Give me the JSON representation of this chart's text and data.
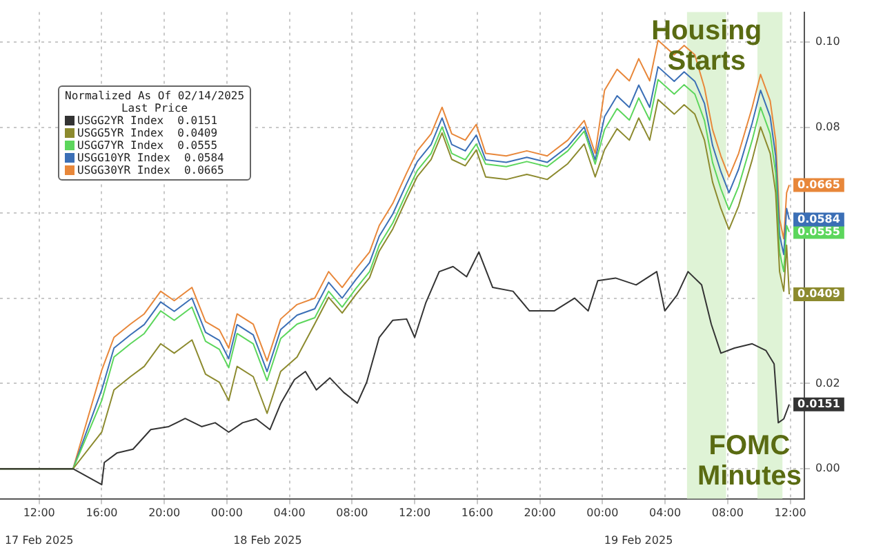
{
  "chart_data": {
    "type": "line",
    "legend_title": "Normalized As Of 02/14/2025",
    "annotations": [
      "Last Price"
    ],
    "x": [
      "2025-02-17T09:30",
      "2025-02-17T14:10",
      "2025-02-17T16:00",
      "2025-02-17T16:47",
      "2025-02-17T17:50",
      "2025-02-17T18:43",
      "2025-02-17T19:46",
      "2025-02-17T20:38",
      "2025-02-17T21:46",
      "2025-02-17T22:38",
      "2025-02-17T23:31",
      "2025-02-18T00:07",
      "2025-02-18T00:39",
      "2025-02-18T01:41",
      "2025-02-18T02:34",
      "2025-02-18T03:26",
      "2025-02-18T04:29",
      "2025-02-18T05:37",
      "2025-02-18T06:30",
      "2025-02-18T07:22",
      "2025-02-18T08:14",
      "2025-02-18T09:07",
      "2025-02-18T09:44",
      "2025-02-18T10:36",
      "2025-02-18T11:29",
      "2025-02-18T12:10",
      "2025-02-18T13:03",
      "2025-02-18T13:45",
      "2025-02-18T14:22",
      "2025-02-18T15:14",
      "2025-02-18T15:56",
      "2025-02-18T16:32",
      "2025-02-18T17:51",
      "2025-02-18T19:10",
      "2025-02-18T20:28",
      "2025-02-18T21:47",
      "2025-02-18T22:50",
      "2025-02-18T23:32",
      "2025-02-19T00:08",
      "2025-02-19T00:56",
      "2025-02-19T01:43",
      "2025-02-19T02:19",
      "2025-02-19T03:01",
      "2025-02-19T03:33",
      "2025-02-19T04:35",
      "2025-02-19T05:13",
      "2025-02-19T05:54",
      "2025-02-19T06:31",
      "2025-02-19T07:02",
      "2025-02-19T07:34",
      "2025-02-19T08:05",
      "2025-02-19T08:42",
      "2025-02-19T09:34",
      "2025-02-19T10:06",
      "2025-02-19T10:43",
      "2025-02-19T11:04",
      "2025-02-19T11:19",
      "2025-02-19T11:35",
      "2025-02-19T11:46",
      "2025-02-19T11:56"
    ],
    "series": [
      {
        "name": "USGG2YR Index",
        "color": "#333333",
        "x": [
          "2025-02-17T09:30",
          "2025-02-17T14:10",
          "2025-02-17T16:00",
          "2025-02-17T16:10",
          "2025-02-17T16:58",
          "2025-02-17T18:00",
          "2025-02-17T19:08",
          "2025-02-17T20:17",
          "2025-02-17T21:20",
          "2025-02-17T22:23",
          "2025-02-17T23:15",
          "2025-02-18T00:07",
          "2025-02-18T01:00",
          "2025-02-18T01:52",
          "2025-02-18T02:45",
          "2025-02-18T03:27",
          "2025-02-18T04:19",
          "2025-02-18T05:01",
          "2025-02-18T05:43",
          "2025-02-18T06:35",
          "2025-02-18T07:28",
          "2025-02-18T08:20",
          "2025-02-18T08:56",
          "2025-02-18T09:44",
          "2025-02-18T10:36",
          "2025-02-18T11:29",
          "2025-02-18T12:00",
          "2025-02-18T12:42",
          "2025-02-18T13:34",
          "2025-02-18T14:27",
          "2025-02-18T15:19",
          "2025-02-18T16:06",
          "2025-02-18T16:59",
          "2025-02-18T18:17",
          "2025-02-18T19:20",
          "2025-02-18T20:55",
          "2025-02-18T22:13",
          "2025-02-18T23:05",
          "2025-02-18T23:42",
          "2025-02-19T00:50",
          "2025-02-19T02:09",
          "2025-02-19T03:28",
          "2025-02-19T03:59",
          "2025-02-19T04:46",
          "2025-02-19T05:28",
          "2025-02-19T06:20",
          "2025-02-19T06:57",
          "2025-02-19T07:34",
          "2025-02-19T08:26",
          "2025-02-19T09:34",
          "2025-02-19T10:27",
          "2025-02-19T10:58",
          "2025-02-19T11:14",
          "2025-02-19T11:35",
          "2025-02-19T11:56"
        ],
        "values": [
          0,
          0,
          -0.0037,
          0.0015,
          0.0037,
          0.0046,
          0.0092,
          0.0099,
          0.0118,
          0.0099,
          0.0108,
          0.0086,
          0.0108,
          0.0117,
          0.0092,
          0.0154,
          0.0209,
          0.0228,
          0.0185,
          0.0213,
          0.0179,
          0.0154,
          0.0203,
          0.0308,
          0.0348,
          0.0351,
          0.0308,
          0.0388,
          0.0462,
          0.0474,
          0.045,
          0.0508,
          0.0425,
          0.0416,
          0.037,
          0.037,
          0.04,
          0.037,
          0.0441,
          0.0447,
          0.0431,
          0.0462,
          0.037,
          0.0407,
          0.0462,
          0.0431,
          0.0339,
          0.0271,
          0.0283,
          0.0293,
          0.0277,
          0.0246,
          0.0108,
          0.0117,
          0.0151
        ],
        "value_labels": [
          null,
          null,
          null,
          null,
          null,
          null,
          null,
          null,
          null,
          null,
          null,
          null,
          null,
          null,
          null,
          null,
          null,
          null,
          null,
          null,
          null,
          null,
          null,
          null,
          null,
          null,
          null,
          null,
          null,
          null,
          null,
          null,
          null,
          null,
          null,
          null,
          null,
          null,
          null,
          null,
          null,
          null,
          null,
          null,
          null,
          null,
          null,
          null,
          null,
          null,
          null,
          null,
          null,
          null,
          "0.0151"
        ]
      },
      {
        "name": "USGG5YR Index",
        "color": "#8c8a2e",
        "values": [
          0,
          0,
          0.0086,
          0.0185,
          0.0216,
          0.024,
          0.0293,
          0.0271,
          0.0302,
          0.0222,
          0.0203,
          0.016,
          0.024,
          0.0216,
          0.013,
          0.0228,
          0.0262,
          0.034,
          0.0402,
          0.0365,
          0.0408,
          0.0448,
          0.051,
          0.0562,
          0.0633,
          0.0685,
          0.0725,
          0.0787,
          0.0725,
          0.071,
          0.0747,
          0.0684,
          0.0678,
          0.069,
          0.0678,
          0.0715,
          0.0761,
          0.0684,
          0.0748,
          0.0797,
          0.077,
          0.0822,
          0.077,
          0.0865,
          0.0831,
          0.0853,
          0.0831,
          0.077,
          0.0672,
          0.061,
          0.0561,
          0.0616,
          0.0724,
          0.0801,
          0.0739,
          0.0647,
          0.0462,
          0.0416,
          0.0524,
          0.0409
        ],
        "value_labels": [
          null,
          null,
          null,
          null,
          null,
          null,
          null,
          null,
          null,
          null,
          null,
          null,
          null,
          null,
          null,
          null,
          null,
          null,
          null,
          null,
          null,
          null,
          null,
          null,
          null,
          null,
          null,
          null,
          null,
          null,
          null,
          null,
          null,
          null,
          null,
          null,
          null,
          null,
          null,
          null,
          null,
          null,
          null,
          null,
          null,
          null,
          null,
          null,
          null,
          null,
          null,
          null,
          null,
          null,
          null,
          null,
          null,
          null,
          null,
          "0.0409"
        ]
      },
      {
        "name": "USGG7YR Index",
        "color": "#5cd65c",
        "values": [
          0,
          0,
          0.016,
          0.0262,
          0.0293,
          0.0317,
          0.037,
          0.0348,
          0.0379,
          0.0299,
          0.028,
          0.0237,
          0.0317,
          0.0293,
          0.0207,
          0.0305,
          0.0339,
          0.0354,
          0.0416,
          0.0379,
          0.0422,
          0.0462,
          0.0524,
          0.0576,
          0.0647,
          0.0699,
          0.0739,
          0.0801,
          0.0739,
          0.0724,
          0.0761,
          0.0714,
          0.0708,
          0.072,
          0.0708,
          0.0745,
          0.0791,
          0.0714,
          0.0795,
          0.0844,
          0.0817,
          0.0869,
          0.0817,
          0.0912,
          0.0878,
          0.09,
          0.0878,
          0.0816,
          0.0718,
          0.0656,
          0.0607,
          0.0662,
          0.077,
          0.0847,
          0.0785,
          0.0693,
          0.0508,
          0.0462,
          0.057,
          0.0555
        ],
        "value_labels": [
          null,
          null,
          null,
          null,
          null,
          null,
          null,
          null,
          null,
          null,
          null,
          null,
          null,
          null,
          null,
          null,
          null,
          null,
          null,
          null,
          null,
          null,
          null,
          null,
          null,
          null,
          null,
          null,
          null,
          null,
          null,
          null,
          null,
          null,
          null,
          null,
          null,
          null,
          null,
          null,
          null,
          null,
          null,
          null,
          null,
          null,
          null,
          null,
          null,
          null,
          null,
          null,
          null,
          null,
          null,
          null,
          null,
          null,
          null,
          "0.0555"
        ]
      },
      {
        "name": "USGG10YR Index",
        "color": "#3b6fb6",
        "values": [
          0,
          0,
          0.0185,
          0.0283,
          0.0314,
          0.0338,
          0.0391,
          0.0369,
          0.04,
          0.032,
          0.0301,
          0.0258,
          0.0338,
          0.0314,
          0.0228,
          0.0326,
          0.036,
          0.0375,
          0.0437,
          0.04,
          0.0443,
          0.0483,
          0.0545,
          0.0597,
          0.0668,
          0.072,
          0.076,
          0.0822,
          0.076,
          0.0745,
          0.0782,
          0.0724,
          0.0718,
          0.073,
          0.0718,
          0.0755,
          0.0801,
          0.0724,
          0.0825,
          0.0874,
          0.0847,
          0.0899,
          0.0847,
          0.0942,
          0.0908,
          0.093,
          0.0908,
          0.0856,
          0.0758,
          0.0696,
          0.0647,
          0.0702,
          0.081,
          0.0887,
          0.0825,
          0.0733,
          0.0548,
          0.0502,
          0.061,
          0.0584
        ],
        "value_labels": [
          null,
          null,
          null,
          null,
          null,
          null,
          null,
          null,
          null,
          null,
          null,
          null,
          null,
          null,
          null,
          null,
          null,
          null,
          null,
          null,
          null,
          null,
          null,
          null,
          null,
          null,
          null,
          null,
          null,
          null,
          null,
          null,
          null,
          null,
          null,
          null,
          null,
          null,
          null,
          null,
          null,
          null,
          null,
          null,
          null,
          null,
          null,
          null,
          null,
          null,
          null,
          null,
          null,
          null,
          null,
          null,
          null,
          null,
          null,
          "0.0584"
        ]
      },
      {
        "name": "USGG30YR Index",
        "color": "#e8873a",
        "values": [
          0,
          0,
          0.0231,
          0.0308,
          0.0339,
          0.0363,
          0.0416,
          0.0394,
          0.0425,
          0.0345,
          0.0326,
          0.0283,
          0.0363,
          0.0339,
          0.0253,
          0.0351,
          0.0385,
          0.04,
          0.0462,
          0.0425,
          0.0468,
          0.0508,
          0.057,
          0.0622,
          0.0693,
          0.0745,
          0.0785,
          0.0847,
          0.0785,
          0.077,
          0.0807,
          0.0739,
          0.0733,
          0.0745,
          0.0733,
          0.077,
          0.0816,
          0.0739,
          0.0887,
          0.0936,
          0.0909,
          0.0961,
          0.0909,
          0.1004,
          0.097,
          0.0992,
          0.097,
          0.0893,
          0.0795,
          0.0733,
          0.0684,
          0.0739,
          0.0847,
          0.0924,
          0.0862,
          0.077,
          0.0585,
          0.0539,
          0.0647,
          0.0665
        ],
        "value_labels": [
          null,
          null,
          null,
          null,
          null,
          null,
          null,
          null,
          null,
          null,
          null,
          null,
          null,
          null,
          null,
          null,
          null,
          null,
          null,
          null,
          null,
          null,
          null,
          null,
          null,
          null,
          null,
          null,
          null,
          null,
          null,
          null,
          null,
          null,
          null,
          null,
          null,
          null,
          null,
          null,
          null,
          null,
          null,
          null,
          null,
          null,
          null,
          null,
          null,
          null,
          null,
          null,
          null,
          null,
          null,
          null,
          null,
          null,
          null,
          "0.0665"
        ]
      }
    ],
    "xlim": [
      "2025-02-17T09:30",
      "2025-02-19T12:54"
    ],
    "xticks": [
      {
        "value": "2025-02-17T12:00",
        "label": "12:00"
      },
      {
        "value": "2025-02-17T16:00",
        "label": "16:00"
      },
      {
        "value": "2025-02-17T20:00",
        "label": "20:00"
      },
      {
        "value": "2025-02-18T00:00",
        "label": "00:00"
      },
      {
        "value": "2025-02-18T04:00",
        "label": "04:00"
      },
      {
        "value": "2025-02-18T08:00",
        "label": "08:00"
      },
      {
        "value": "2025-02-18T12:00",
        "label": "12:00"
      },
      {
        "value": "2025-02-18T16:00",
        "label": "16:00"
      },
      {
        "value": "2025-02-18T20:00",
        "label": "20:00"
      },
      {
        "value": "2025-02-19T00:00",
        "label": "00:00"
      },
      {
        "value": "2025-02-19T04:00",
        "label": "04:00"
      },
      {
        "value": "2025-02-19T08:00",
        "label": "08:00"
      },
      {
        "value": "2025-02-19T12:00",
        "label": "12:00"
      }
    ],
    "x2lim": [
      "2025-02-17T09:30",
      "2025-02-19T12:54"
    ],
    "x2ticks": [
      {
        "value": "2025-02-17T12:00",
        "label": "17 Feb 2025"
      },
      {
        "value": "2025-02-18T02:36",
        "label": "18 Feb 2025"
      },
      {
        "value": "2025-02-19T02:18",
        "label": "19 Feb 2025"
      }
    ],
    "ylim": [
      -0.007,
      0.107
    ],
    "yticks": [
      {
        "value": 0,
        "label": "0.00"
      },
      {
        "value": 0.02,
        "label": "0.02"
      },
      {
        "value": 0.04,
        "label": null
      },
      {
        "value": 0.06,
        "label": null
      },
      {
        "value": 0.08,
        "label": "0.08"
      },
      {
        "value": 0.1,
        "label": "0.10"
      }
    ],
    "bands": [
      {
        "axis": "x",
        "from": "2025-02-19T05:24",
        "to": "2025-02-19T07:54",
        "label": "Housing Starts",
        "color": "#dff3d6"
      },
      {
        "axis": "x",
        "from": "2025-02-19T09:54",
        "to": "2025-02-19T11:30",
        "label": "FOMC Minutes",
        "color": "#dff3d6"
      }
    ],
    "grid": true,
    "legend": "top left",
    "marker": "none",
    "line_style": "solid"
  }
}
